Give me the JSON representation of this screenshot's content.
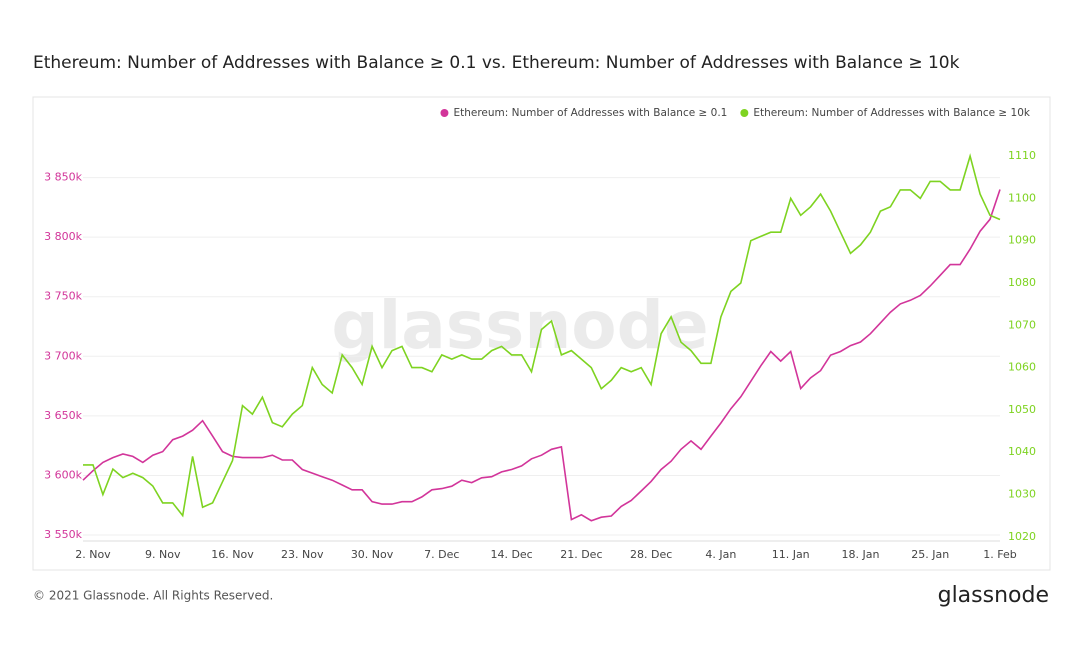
{
  "chart_data": {
    "type": "line",
    "title": "Ethereum: Number of Addresses with Balance ≥ 0.1 vs. Ethereum: Number of Addresses with Balance ≥ 10k",
    "watermark": "glassnode",
    "footer": "© 2021 Glassnode. All Rights Reserved.",
    "logo": "glassnode",
    "legend": "top-right",
    "grid": true,
    "categories": [
      null,
      "2. Nov",
      null,
      null,
      null,
      null,
      null,
      null,
      "9. Nov",
      null,
      null,
      null,
      null,
      null,
      null,
      "16. Nov",
      null,
      null,
      null,
      null,
      null,
      null,
      "23. Nov",
      null,
      null,
      null,
      null,
      null,
      null,
      "30. Nov",
      null,
      null,
      null,
      null,
      null,
      null,
      "7. Dec",
      null,
      null,
      null,
      null,
      null,
      null,
      "14. Dec",
      null,
      null,
      null,
      null,
      null,
      null,
      "21. Dec",
      null,
      null,
      null,
      null,
      null,
      null,
      "28. Dec",
      null,
      null,
      null,
      null,
      null,
      null,
      "4. Jan",
      null,
      null,
      null,
      null,
      null,
      null,
      "11. Jan",
      null,
      null,
      null,
      null,
      null,
      null,
      "18. Jan",
      null,
      null,
      null,
      null,
      null,
      null,
      "25. Jan",
      null,
      null,
      null,
      null,
      null,
      null,
      "1. Feb"
    ],
    "ylim": [
      3545000,
      3900000
    ],
    "yticks": [
      {
        "value": 3550000,
        "label": "3 550k"
      },
      {
        "value": 3600000,
        "label": "3 600k"
      },
      {
        "value": 3650000,
        "label": "3 650k"
      },
      {
        "value": 3700000,
        "label": "3 700k"
      },
      {
        "value": 3750000,
        "label": "3 750k"
      },
      {
        "value": 3800000,
        "label": "3 800k"
      },
      {
        "value": 3850000,
        "label": "3 850k"
      }
    ],
    "y2lim": [
      1019,
      1119
    ],
    "y2ticks": [
      1020,
      1030,
      1040,
      1050,
      1060,
      1070,
      1080,
      1090,
      1100,
      1110
    ],
    "series": [
      {
        "name": "Ethereum: Number of Addresses with Balance ≥ 0.1",
        "color": "#d2359a",
        "values": [
          3596000,
          3604000,
          3611000,
          3615000,
          3618000,
          3616000,
          3611000,
          3617000,
          3620000,
          3630000,
          3633000,
          3638000,
          3646000,
          3633000,
          3620000,
          3616000,
          3615000,
          3615000,
          3615000,
          3617000,
          3613000,
          3613000,
          3605000,
          3602000,
          3599000,
          3596000,
          3592000,
          3588000,
          3588000,
          3578000,
          3576000,
          3576000,
          3578000,
          3578000,
          3582000,
          3588000,
          3589000,
          3591000,
          3596000,
          3594000,
          3598000,
          3599000,
          3603000,
          3605000,
          3608000,
          3614000,
          3617000,
          3622000,
          3624000,
          3563000,
          3567000,
          3562000,
          3565000,
          3566000,
          3574000,
          3579000,
          3587000,
          3595000,
          3605000,
          3612000,
          3622000,
          3629000,
          3622000,
          3633000,
          3644000,
          3656000,
          3666000,
          3679000,
          3692000,
          3704000,
          3696000,
          3704000,
          3673000,
          3682000,
          3688000,
          3701000,
          3704000,
          3709000,
          3712000,
          3719000,
          3728000,
          3737000,
          3744000,
          3747000,
          3751000,
          3759000,
          3768000,
          3777000,
          3777000,
          3790000,
          3805000,
          3815000,
          3840000
        ]
      },
      {
        "name": "Ethereum: Number of Addresses with Balance ≥ 10k",
        "color": "#7ed321",
        "axis": "y2",
        "values": [
          1037,
          1037,
          1030,
          1036,
          1034,
          1035,
          1034,
          1032,
          1028,
          1028,
          1025,
          1039,
          1027,
          1028,
          1033,
          1038,
          1051,
          1049,
          1053,
          1047,
          1046,
          1049,
          1051,
          1060,
          1056,
          1054,
          1063,
          1060,
          1056,
          1065,
          1060,
          1064,
          1065,
          1060,
          1060,
          1059,
          1063,
          1062,
          1063,
          1062,
          1062,
          1064,
          1065,
          1063,
          1063,
          1059,
          1069,
          1071,
          1063,
          1064,
          1062,
          1060,
          1055,
          1057,
          1060,
          1059,
          1060,
          1056,
          1068,
          1072,
          1066,
          1064,
          1061,
          1061,
          1072,
          1078,
          1080,
          1090,
          1091,
          1092,
          1092,
          1100,
          1096,
          1098,
          1101,
          1097,
          1092,
          1087,
          1089,
          1092,
          1097,
          1098,
          1102,
          1102,
          1100,
          1104,
          1104,
          1102,
          1102,
          1110,
          1101,
          1096,
          1095
        ]
      }
    ]
  }
}
